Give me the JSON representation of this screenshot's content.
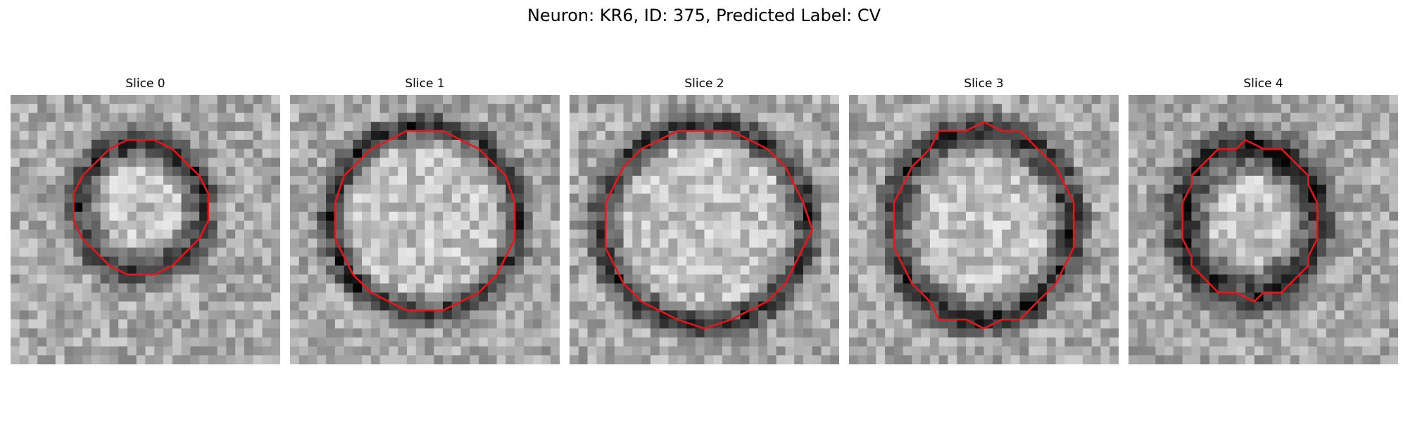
{
  "figure": {
    "title": "Neuron: KR6, ID: 375, Predicted Label: CV",
    "outline_color": "#e8161b"
  },
  "panels": [
    {
      "title": "Slice 0"
    },
    {
      "title": "Slice 1"
    },
    {
      "title": "Slice 2"
    },
    {
      "title": "Slice 3"
    },
    {
      "title": "Slice 4"
    }
  ]
}
